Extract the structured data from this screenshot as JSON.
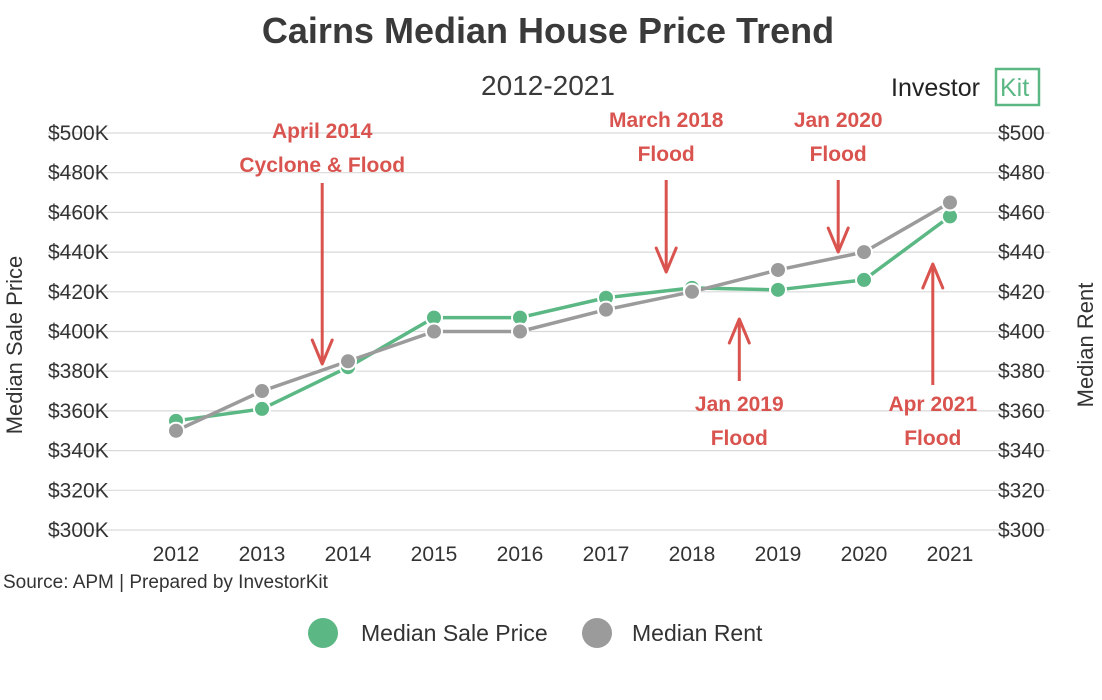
{
  "chart_data": {
    "type": "line",
    "title": "Cairns Median House Price Trend",
    "subtitle": "2012-2021",
    "brand": {
      "name": "Investor",
      "kit": "Kit",
      "accent": "#5bb884"
    },
    "categories": [
      "2012",
      "2013",
      "2014",
      "2015",
      "2016",
      "2017",
      "2018",
      "2019",
      "2020",
      "2021"
    ],
    "ylabel_left": "Median Sale Price",
    "ylabel_right": "Median Rent",
    "ylim_left": [
      300,
      500
    ],
    "ylim_right": [
      300,
      500
    ],
    "yticks_left": [
      "$300K",
      "$320K",
      "$340K",
      "$360K",
      "$380K",
      "$400K",
      "$420K",
      "$440K",
      "$460K",
      "$480K",
      "$500K"
    ],
    "yticks_right": [
      "$300",
      "$320",
      "$340",
      "$360",
      "$380",
      "$400",
      "$420",
      "$440",
      "$460",
      "$480",
      "$500"
    ],
    "grid": true,
    "series": [
      {
        "name": "Median Sale Price",
        "color": "#5bb884",
        "axis": "left",
        "values": [
          355,
          361,
          382,
          407,
          407,
          417,
          422,
          421,
          426,
          458
        ]
      },
      {
        "name": "Median Rent",
        "color": "#9b9b9b",
        "axis": "right",
        "values": [
          350,
          370,
          385,
          400,
          400,
          411,
          420,
          431,
          440,
          465
        ]
      }
    ],
    "annotations": [
      {
        "lines": [
          "April 2014",
          "Cyclone & Flood"
        ],
        "x": 2013.7,
        "direction": "down",
        "color": "#d9534f"
      },
      {
        "lines": [
          "March 2018",
          "Flood"
        ],
        "x": 2017.7,
        "direction": "down",
        "color": "#d9534f"
      },
      {
        "lines": [
          "Jan 2020",
          "Flood"
        ],
        "x": 2019.7,
        "direction": "down",
        "color": "#d9534f"
      },
      {
        "lines": [
          "Jan 2019",
          "Flood"
        ],
        "x": 2018.55,
        "direction": "up",
        "color": "#d9534f"
      },
      {
        "lines": [
          "Apr 2021",
          "Flood"
        ],
        "x": 2020.8,
        "direction": "up",
        "color": "#d9534f"
      }
    ],
    "legend": {
      "position": "bottom",
      "items": [
        "Median Sale Price",
        "Median Rent"
      ]
    },
    "source": "Source: APM | Prepared by InvestorKit"
  }
}
